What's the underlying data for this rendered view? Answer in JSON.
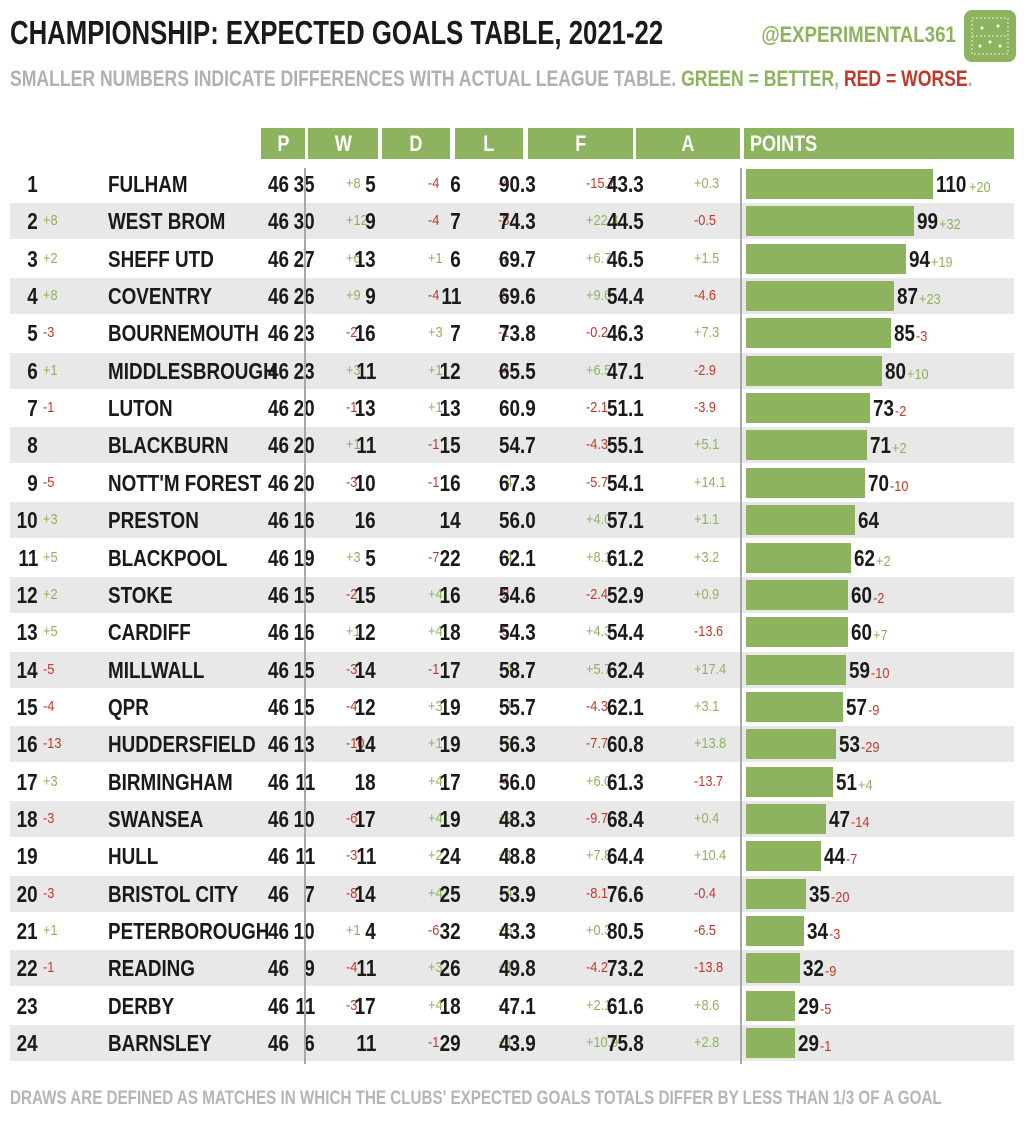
{
  "title": "CHAMPIONSHIP: EXPECTED GOALS TABLE, 2021-22",
  "handle": "@EXPERIMENTAL361",
  "subtitle": {
    "main": "SMALLER NUMBERS INDICATE DIFFERENCES WITH ACTUAL LEAGUE TABLE.",
    "green": "GREEN = BETTER",
    "sep": ",",
    "red": "RED = WORSE",
    "end": "."
  },
  "footnote": "DRAWS ARE DEFINED AS MATCHES IN WHICH THE CLUBS' EXPECTED GOALS TOTALS DIFFER BY LESS THAN 1/3 OF A GOAL",
  "colors": {
    "accent": "#8db35e",
    "better": "#8db35e",
    "worse": "#c0392b",
    "shade": "#e8e8e8"
  },
  "chart_data": {
    "type": "table",
    "columns": [
      "P",
      "W",
      "D",
      "L",
      "F",
      "A",
      "POINTS"
    ],
    "points_scale_max": 110,
    "rows": [
      {
        "rank": "1",
        "rank_diff": "",
        "team": "FULHAM",
        "p": "46",
        "w": "35",
        "w_diff": "+8",
        "d": "5",
        "d_diff": "-4",
        "l": "6",
        "l_diff": "-4",
        "f": "90.3",
        "f_diff": "-15.7",
        "a": "43.3",
        "a_diff": "+0.3",
        "pts": 110,
        "pts_diff": "+20"
      },
      {
        "rank": "2",
        "rank_diff": "+8",
        "team": "WEST BROM",
        "p": "46",
        "w": "30",
        "w_diff": "+12",
        "d": "9",
        "d_diff": "-4",
        "l": "7",
        "l_diff": "-8",
        "f": "74.3",
        "f_diff": "+22.3",
        "a": "44.5",
        "a_diff": "-0.5",
        "pts": 99,
        "pts_diff": "+32"
      },
      {
        "rank": "3",
        "rank_diff": "+2",
        "team": "SHEFF UTD",
        "p": "46",
        "w": "27",
        "w_diff": "+6",
        "d": "13",
        "d_diff": "+1",
        "l": "6",
        "l_diff": "-7",
        "f": "69.7",
        "f_diff": "+6.7",
        "a": "46.5",
        "a_diff": "+1.5",
        "pts": 94,
        "pts_diff": "+19"
      },
      {
        "rank": "4",
        "rank_diff": "+8",
        "team": "COVENTRY",
        "p": "46",
        "w": "26",
        "w_diff": "+9",
        "d": "9",
        "d_diff": "-4",
        "l": "11",
        "l_diff": "-5",
        "f": "69.6",
        "f_diff": "+9.6",
        "a": "54.4",
        "a_diff": "-4.6",
        "pts": 87,
        "pts_diff": "+23"
      },
      {
        "rank": "5",
        "rank_diff": "-3",
        "team": "BOURNEMOUTH",
        "p": "46",
        "w": "23",
        "w_diff": "-2",
        "d": "16",
        "d_diff": "+3",
        "l": "7",
        "l_diff": "-1",
        "f": "73.8",
        "f_diff": "-0.2",
        "a": "46.3",
        "a_diff": "+7.3",
        "pts": 85,
        "pts_diff": "-3"
      },
      {
        "rank": "6",
        "rank_diff": "+1",
        "team": "MIDDLESBROUGH",
        "p": "46",
        "w": "23",
        "w_diff": "+3",
        "d": "11",
        "d_diff": "+1",
        "l": "12",
        "l_diff": "-4",
        "f": "65.5",
        "f_diff": "+6.5",
        "a": "47.1",
        "a_diff": "-2.9",
        "pts": 80,
        "pts_diff": "+10"
      },
      {
        "rank": "7",
        "rank_diff": "-1",
        "team": "LUTON",
        "p": "46",
        "w": "20",
        "w_diff": "-1",
        "d": "13",
        "d_diff": "+1",
        "l": "13",
        "l_diff": "",
        "f": "60.9",
        "f_diff": "-2.1",
        "a": "51.1",
        "a_diff": "-3.9",
        "pts": 73,
        "pts_diff": "-2"
      },
      {
        "rank": "8",
        "rank_diff": "",
        "team": "BLACKBURN",
        "p": "46",
        "w": "20",
        "w_diff": "+1",
        "d": "11",
        "d_diff": "-1",
        "l": "15",
        "l_diff": "",
        "f": "54.7",
        "f_diff": "-4.3",
        "a": "55.1",
        "a_diff": "+5.1",
        "pts": 71,
        "pts_diff": "+2"
      },
      {
        "rank": "9",
        "rank_diff": "-5",
        "team": "NOTT'M FOREST",
        "p": "46",
        "w": "20",
        "w_diff": "-3",
        "d": "10",
        "d_diff": "-1",
        "l": "16",
        "l_diff": "+4",
        "f": "67.3",
        "f_diff": "-5.7",
        "a": "54.1",
        "a_diff": "+14.1",
        "pts": 70,
        "pts_diff": "-10"
      },
      {
        "rank": "10",
        "rank_diff": "+3",
        "team": "PRESTON",
        "p": "46",
        "w": "16",
        "w_diff": "",
        "d": "16",
        "d_diff": "",
        "l": "14",
        "l_diff": "",
        "f": "56.0",
        "f_diff": "+4.0",
        "a": "57.1",
        "a_diff": "+1.1",
        "pts": 64,
        "pts_diff": ""
      },
      {
        "rank": "11",
        "rank_diff": "+5",
        "team": "BLACKPOOL",
        "p": "46",
        "w": "19",
        "w_diff": "+3",
        "d": "5",
        "d_diff": "-7",
        "l": "22",
        "l_diff": "+4",
        "f": "62.1",
        "f_diff": "+8.1",
        "a": "61.2",
        "a_diff": "+3.2",
        "pts": 62,
        "pts_diff": "+2"
      },
      {
        "rank": "12",
        "rank_diff": "+2",
        "team": "STOKE",
        "p": "46",
        "w": "15",
        "w_diff": "-2",
        "d": "15",
        "d_diff": "+4",
        "l": "16",
        "l_diff": "-2",
        "f": "54.6",
        "f_diff": "-2.4",
        "a": "52.9",
        "a_diff": "+0.9",
        "pts": 60,
        "pts_diff": "-2"
      },
      {
        "rank": "13",
        "rank_diff": "+5",
        "team": "CARDIFF",
        "p": "46",
        "w": "16",
        "w_diff": "+1",
        "d": "12",
        "d_diff": "+4",
        "l": "18",
        "l_diff": "-5",
        "f": "54.3",
        "f_diff": "+4.3",
        "a": "54.4",
        "a_diff": "-13.6",
        "pts": 60,
        "pts_diff": "+7"
      },
      {
        "rank": "14",
        "rank_diff": "-5",
        "team": "MILLWALL",
        "p": "46",
        "w": "15",
        "w_diff": "-3",
        "d": "14",
        "d_diff": "-1",
        "l": "17",
        "l_diff": "+4",
        "f": "58.7",
        "f_diff": "+5.7",
        "a": "62.4",
        "a_diff": "+17.4",
        "pts": 59,
        "pts_diff": "-10"
      },
      {
        "rank": "15",
        "rank_diff": "-4",
        "team": "QPR",
        "p": "46",
        "w": "15",
        "w_diff": "-4",
        "d": "12",
        "d_diff": "+3",
        "l": "19",
        "l_diff": "+1",
        "f": "55.7",
        "f_diff": "-4.3",
        "a": "62.1",
        "a_diff": "+3.1",
        "pts": 57,
        "pts_diff": "-9"
      },
      {
        "rank": "16",
        "rank_diff": "-13",
        "team": "HUDDERSFIELD",
        "p": "46",
        "w": "13",
        "w_diff": "-10",
        "d": "14",
        "d_diff": "+1",
        "l": "19",
        "l_diff": "+9",
        "f": "56.3",
        "f_diff": "-7.7",
        "a": "60.8",
        "a_diff": "+13.8",
        "pts": 53,
        "pts_diff": "-29"
      },
      {
        "rank": "17",
        "rank_diff": "+3",
        "team": "BIRMINGHAM",
        "p": "46",
        "w": "11",
        "w_diff": "",
        "d": "18",
        "d_diff": "+4",
        "l": "17",
        "l_diff": "-4",
        "f": "56.0",
        "f_diff": "+6.0",
        "a": "61.3",
        "a_diff": "-13.7",
        "pts": 51,
        "pts_diff": "+4"
      },
      {
        "rank": "18",
        "rank_diff": "-3",
        "team": "SWANSEA",
        "p": "46",
        "w": "10",
        "w_diff": "-6",
        "d": "17",
        "d_diff": "+4",
        "l": "19",
        "l_diff": "+2",
        "f": "48.3",
        "f_diff": "-9.7",
        "a": "68.4",
        "a_diff": "+0.4",
        "pts": 47,
        "pts_diff": "-14"
      },
      {
        "rank": "19",
        "rank_diff": "",
        "team": "HULL",
        "p": "46",
        "w": "11",
        "w_diff": "-3",
        "d": "11",
        "d_diff": "+2",
        "l": "24",
        "l_diff": "+1",
        "f": "48.8",
        "f_diff": "+7.8",
        "a": "64.4",
        "a_diff": "+10.4",
        "pts": 44,
        "pts_diff": "-7"
      },
      {
        "rank": "20",
        "rank_diff": "-3",
        "team": "BRISTOL CITY",
        "p": "46",
        "w": "7",
        "w_diff": "-8",
        "d": "14",
        "d_diff": "+4",
        "l": "25",
        "l_diff": "+4",
        "f": "53.9",
        "f_diff": "-8.1",
        "a": "76.6",
        "a_diff": "-0.4",
        "pts": 35,
        "pts_diff": "-20"
      },
      {
        "rank": "21",
        "rank_diff": "+1",
        "team": "PETERBOROUGH",
        "p": "46",
        "w": "10",
        "w_diff": "+1",
        "d": "4",
        "d_diff": "-6",
        "l": "32",
        "l_diff": "+5",
        "f": "43.3",
        "f_diff": "+0.3",
        "a": "80.5",
        "a_diff": "-6.5",
        "pts": 34,
        "pts_diff": "-3"
      },
      {
        "rank": "22",
        "rank_diff": "-1",
        "team": "READING",
        "p": "46",
        "w": "9",
        "w_diff": "-4",
        "d": "11",
        "d_diff": "+3",
        "l": "26",
        "l_diff": "+1",
        "f": "49.8",
        "f_diff": "-4.2",
        "a": "73.2",
        "a_diff": "-13.8",
        "pts": 32,
        "pts_diff": "-9"
      },
      {
        "rank": "23",
        "rank_diff": "",
        "team": "DERBY",
        "p": "46",
        "w": "11",
        "w_diff": "-3",
        "d": "17",
        "d_diff": "+4",
        "l": "18",
        "l_diff": "-1",
        "f": "47.1",
        "f_diff": "+2.1",
        "a": "61.6",
        "a_diff": "+8.6",
        "pts": 29,
        "pts_diff": "-5"
      },
      {
        "rank": "24",
        "rank_diff": "",
        "team": "BARNSLEY",
        "p": "46",
        "w": "6",
        "w_diff": "",
        "d": "11",
        "d_diff": "-1",
        "l": "29",
        "l_diff": "+1",
        "f": "43.9",
        "f_diff": "+10.9",
        "a": "75.8",
        "a_diff": "+2.8",
        "pts": 29,
        "pts_diff": "-1"
      }
    ]
  }
}
